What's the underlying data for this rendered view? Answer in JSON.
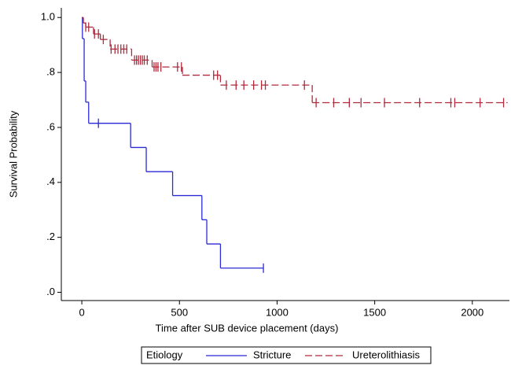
{
  "chart_data": {
    "type": "km",
    "xlabel": "Time after SUB device placement (days)",
    "ylabel": "Survival Probability",
    "xlim": [
      -105,
      2190
    ],
    "ylim": [
      -0.03,
      1.035
    ],
    "xticks": [
      0,
      500,
      1000,
      1500,
      2000
    ],
    "yticks": [
      {
        "value": 0,
        "label": ".0"
      },
      {
        "value": 0.2,
        "label": ".2"
      },
      {
        "value": 0.4,
        "label": ".4"
      },
      {
        "value": 0.6,
        "label": ".6"
      },
      {
        "value": 0.8,
        "label": ".8"
      },
      {
        "value": 1,
        "label": "1.0"
      }
    ],
    "legend_title": "Etiology",
    "series": [
      {
        "name": "Stricture",
        "color": "#2a2ad6",
        "dash": false,
        "x": [
          0,
          3,
          12,
          20,
          35,
          250,
          330,
          465,
          615,
          640,
          710,
          930
        ],
        "values": [
          1,
          0.923,
          0.769,
          0.692,
          0.615,
          0.527,
          0.439,
          0.352,
          0.264,
          0.176,
          0.088,
          0.088
        ],
        "censored": {
          "x": [
            85,
            930
          ],
          "values": [
            0.615,
            0.088
          ]
        }
      },
      {
        "name": "Ureterolithiasis",
        "color": "#b02a3c",
        "dash": true,
        "x": [
          0,
          8,
          20,
          60,
          95,
          145,
          255,
          360,
          515,
          710,
          1180,
          2180
        ],
        "values": [
          1,
          0.98,
          0.965,
          0.94,
          0.92,
          0.885,
          0.845,
          0.82,
          0.79,
          0.754,
          0.69,
          0.69
        ],
        "censored": {
          "x": [
            20,
            35,
            65,
            85,
            110,
            150,
            170,
            185,
            200,
            215,
            230,
            270,
            280,
            290,
            300,
            310,
            320,
            335,
            370,
            380,
            390,
            405,
            490,
            510,
            675,
            695,
            740,
            790,
            830,
            880,
            920,
            940,
            1140,
            1200,
            1290,
            1370,
            1430,
            1550,
            1730,
            1890,
            1910,
            2040,
            2160
          ],
          "values": [
            0.965,
            0.965,
            0.94,
            0.94,
            0.92,
            0.885,
            0.885,
            0.885,
            0.885,
            0.885,
            0.885,
            0.845,
            0.845,
            0.845,
            0.845,
            0.845,
            0.845,
            0.845,
            0.82,
            0.82,
            0.82,
            0.82,
            0.82,
            0.82,
            0.79,
            0.79,
            0.754,
            0.754,
            0.754,
            0.754,
            0.754,
            0.754,
            0.754,
            0.69,
            0.69,
            0.69,
            0.69,
            0.69,
            0.69,
            0.69,
            0.69,
            0.69,
            0.69
          ]
        }
      }
    ]
  }
}
